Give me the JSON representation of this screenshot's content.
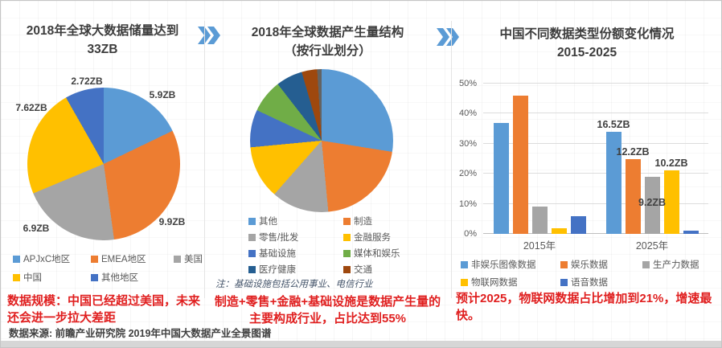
{
  "panels": {
    "storage": {
      "title": "2018年全球大数据储量达到\n33ZB",
      "caption": "数据规模：中国已经超过美国，未来还会进一步拉大差距"
    },
    "industry": {
      "title": "2018年全球数据产生量结构\n（按行业划分）",
      "note": "注：基础设施包括公用事业、电信行业",
      "caption": "制造+零售+金融+基础设施是数据产生量的主要构成行业，占比达到55%"
    },
    "china": {
      "title": "中国不同数据类型份额变化情况\n2015-2025",
      "caption": "预计2025，物联网数据占比增加到21%，增速最快。"
    }
  },
  "footer": {
    "source": "数据来源: 前瞻产业研究院 2019年中国大数据产业全景图谱"
  },
  "accent": {
    "arrow_color": "#5B9BD5",
    "annotation_red": "#E01F1F"
  },
  "chart_data": [
    {
      "type": "pie",
      "title": "2018年全球大数据储量达到33ZB",
      "unit": "ZB",
      "total_label": "33ZB",
      "slices": [
        {
          "label": "APJxC地区",
          "value": 5.9,
          "value_label": "5.9ZB",
          "color": "#5B9BD5"
        },
        {
          "label": "EMEA地区",
          "value": 9.9,
          "value_label": "9.9ZB",
          "color": "#ED7D31"
        },
        {
          "label": "美国",
          "value": 6.9,
          "value_label": "6.9ZB",
          "color": "#A5A5A5"
        },
        {
          "label": "中国",
          "value": 7.62,
          "value_label": "7.62ZB",
          "color": "#FFC000"
        },
        {
          "label": "其他地区",
          "value": 2.72,
          "value_label": "2.72ZB",
          "color": "#4472C4"
        }
      ]
    },
    {
      "type": "pie",
      "title": "2018年全球数据产生量结构（按行业划分）",
      "unit": "%",
      "slices": [
        {
          "label": "其他",
          "value": 27.5,
          "color": "#5B9BD5"
        },
        {
          "label": "制造",
          "value": 21,
          "color": "#ED7D31"
        },
        {
          "label": "零售/批发",
          "value": 13,
          "color": "#A5A5A5"
        },
        {
          "label": "金融服务",
          "value": 12,
          "color": "#FFC000"
        },
        {
          "label": "基础设施",
          "value": 8.5,
          "color": "#4472C4"
        },
        {
          "label": "媒体和娱乐",
          "value": 7.5,
          "color": "#70AD47"
        },
        {
          "label": "医疗健康",
          "value": 6,
          "color": "#255E91"
        },
        {
          "label": "交通",
          "value": 3.5,
          "color": "#9E480E"
        },
        {
          "label": "",
          "value": 1,
          "color": "#636363"
        }
      ]
    },
    {
      "type": "bar",
      "title": "中国不同数据类型份额变化情况 2015-2025",
      "categories": [
        "2015年",
        "2025年"
      ],
      "series": [
        {
          "name": "非娱乐图像数据",
          "color": "#5B9BD5",
          "values": [
            37,
            34
          ]
        },
        {
          "name": "娱乐数据",
          "color": "#ED7D31",
          "values": [
            46,
            25
          ]
        },
        {
          "name": "生产力数据",
          "color": "#A5A5A5",
          "values": [
            9,
            19
          ]
        },
        {
          "name": "物联网数据",
          "color": "#FFC000",
          "values": [
            2,
            21
          ]
        },
        {
          "name": "语音数据",
          "color": "#4472C4",
          "values": [
            6,
            1
          ]
        }
      ],
      "ylim": [
        0,
        50
      ],
      "yticks": [
        "0%",
        "10%",
        "20%",
        "30%",
        "40%",
        "50%"
      ],
      "grid": true,
      "legend_position": "bottom",
      "bar_labels": [
        {
          "text": "16.5ZB",
          "category": 1,
          "series": 0,
          "placement": "above"
        },
        {
          "text": "12.2ZB",
          "category": 1,
          "series": 1,
          "placement": "above"
        },
        {
          "text": "9.2ZB",
          "category": 1,
          "series": 2,
          "placement": "inside"
        },
        {
          "text": "10.2ZB",
          "category": 1,
          "series": 3,
          "placement": "above"
        }
      ]
    }
  ]
}
